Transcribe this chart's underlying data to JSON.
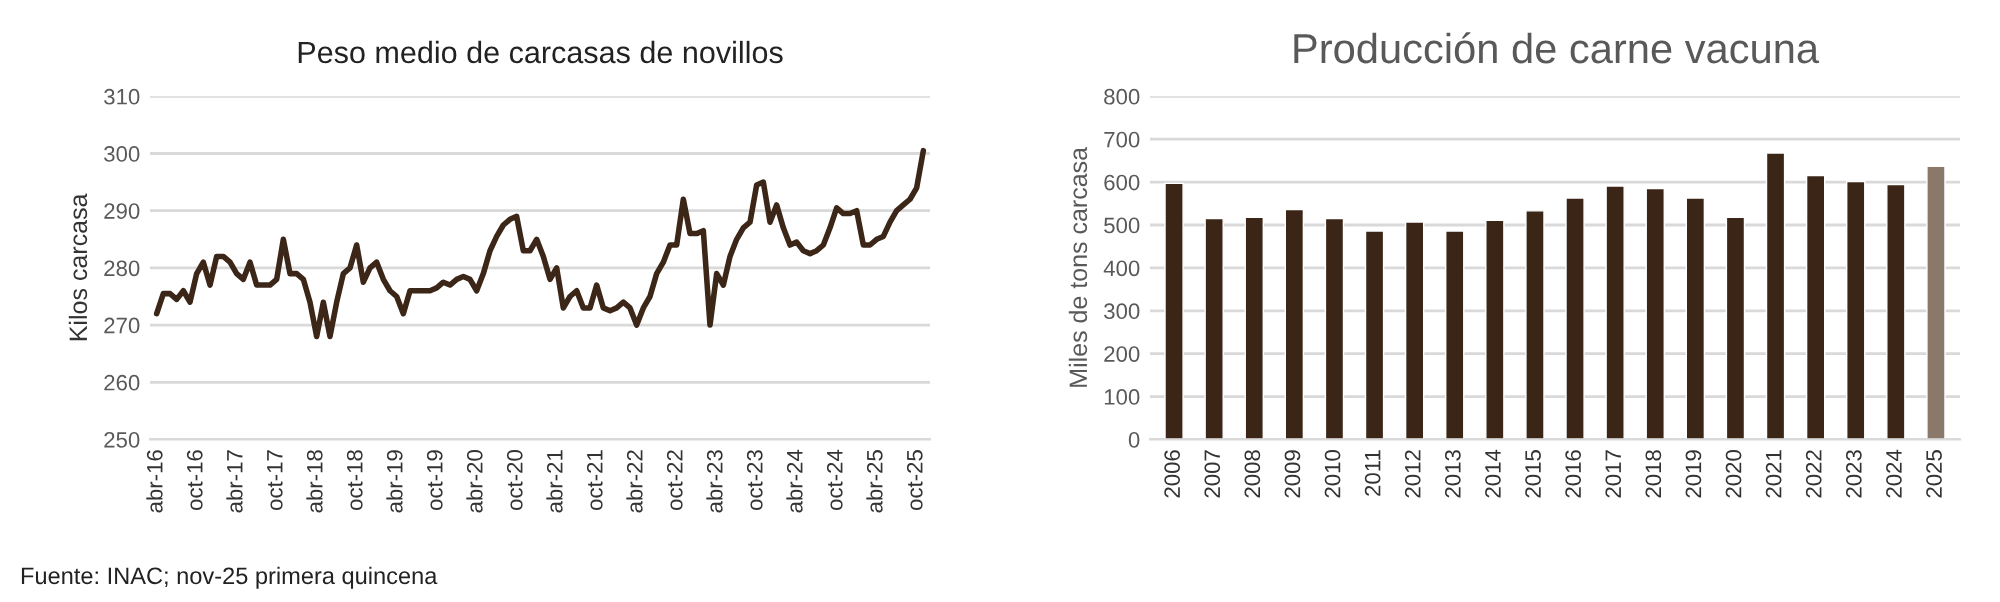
{
  "chart_data": [
    {
      "type": "line",
      "title": "Peso medio de carcasas de novillos",
      "ylabel": "Kilos carcasa",
      "categories": [
        "abr-16",
        null,
        null,
        null,
        null,
        null,
        "oct-16",
        null,
        null,
        null,
        null,
        null,
        "abr-17",
        null,
        null,
        null,
        null,
        null,
        "oct-17",
        null,
        null,
        null,
        null,
        null,
        "abr-18",
        null,
        null,
        null,
        null,
        null,
        "oct-18",
        null,
        null,
        null,
        null,
        null,
        "abr-19",
        null,
        null,
        null,
        null,
        null,
        "oct-19",
        null,
        null,
        null,
        null,
        null,
        "abr-20",
        null,
        null,
        null,
        null,
        null,
        "oct-20",
        null,
        null,
        null,
        null,
        null,
        "abr-21",
        null,
        null,
        null,
        null,
        null,
        "oct-21",
        null,
        null,
        null,
        null,
        null,
        "abr-22",
        null,
        null,
        null,
        null,
        null,
        "oct-22",
        null,
        null,
        null,
        null,
        null,
        "abr-23",
        null,
        null,
        null,
        null,
        null,
        "oct-23",
        null,
        null,
        null,
        null,
        null,
        "abr-24",
        null,
        null,
        null,
        null,
        null,
        "oct-24",
        null,
        null,
        null,
        null,
        null,
        "abr-25",
        null,
        null,
        null,
        null,
        null,
        "oct-25",
        null
      ],
      "series": [
        {
          "color": "#3b2618",
          "values": [
            272,
            275.5,
            275.5,
            274.5,
            276,
            274,
            279,
            281,
            277,
            282,
            282,
            281,
            279,
            278,
            281,
            277,
            277,
            277,
            278,
            285,
            279,
            279,
            278,
            274,
            268,
            274,
            268,
            274,
            279,
            280,
            284,
            277.5,
            280,
            281,
            278,
            276,
            275,
            272,
            276,
            276,
            276,
            276,
            276.5,
            277.5,
            277,
            278,
            278.5,
            278,
            276,
            279,
            283,
            285.5,
            287.5,
            288.5,
            289,
            283,
            283,
            285,
            282,
            278,
            280,
            273,
            275,
            276,
            273,
            273,
            277,
            273,
            272.5,
            273,
            274,
            273,
            270,
            273,
            275,
            279,
            281,
            284,
            284,
            292,
            286,
            286,
            286.5,
            270,
            279,
            277,
            282,
            285,
            287,
            288,
            294.5,
            295,
            288,
            291,
            287,
            284,
            284.5,
            283,
            282.5,
            283,
            284,
            287,
            290.5,
            289.5,
            289.5,
            290,
            284,
            284,
            285,
            285.5,
            288,
            290,
            291,
            292,
            294,
            300.5
          ]
        }
      ],
      "ylim": [
        250,
        310
      ],
      "yticks": [
        250,
        260,
        270,
        280,
        290,
        300,
        310
      ],
      "grid": "y",
      "annotations": [
        "Fuente: INAC; nov-25 primera quincena"
      ]
    },
    {
      "type": "bar",
      "title": "Producción de carne vacuna",
      "ylabel": "Miles de tons carcasa",
      "categories": [
        "2006",
        "2007",
        "2008",
        "2009",
        "2010",
        "2011",
        "2012",
        "2013",
        "2014",
        "2015",
        "2016",
        "2017",
        "2018",
        "2019",
        "2020",
        "2021",
        "2022",
        "2023",
        "2024",
        "2025"
      ],
      "values": [
        597,
        515,
        518,
        536,
        515,
        486,
        507,
        486,
        511,
        533,
        563,
        591,
        585,
        563,
        518,
        668,
        615,
        601,
        594,
        637
      ],
      "colors": [
        "#3a2517",
        "#3a2517",
        "#3a2517",
        "#3a2517",
        "#3a2517",
        "#3a2517",
        "#3a2517",
        "#3a2517",
        "#3a2517",
        "#3a2517",
        "#3a2517",
        "#3a2517",
        "#3a2517",
        "#3a2517",
        "#3a2517",
        "#3a2517",
        "#3a2517",
        "#3a2517",
        "#3a2517",
        "#8a786b"
      ],
      "ylim": [
        0,
        800
      ],
      "yticks": [
        0,
        100,
        200,
        300,
        400,
        500,
        600,
        700,
        800
      ],
      "grid": "y"
    }
  ]
}
